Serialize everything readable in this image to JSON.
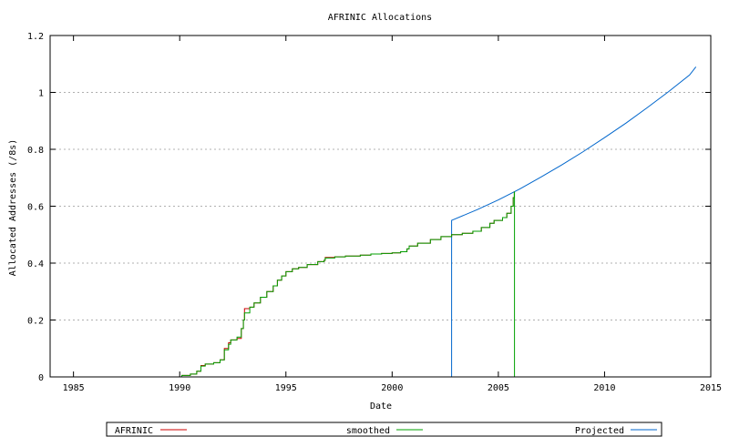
{
  "chart_data": {
    "type": "line",
    "title": "AFRINIC Allocations",
    "xlabel": "Date",
    "ylabel": "Allocated Addresses (/8s)",
    "xlim": [
      1983.9,
      2015
    ],
    "ylim": [
      0,
      1.2
    ],
    "x_ticks": [
      1985,
      1990,
      1995,
      2000,
      2005,
      2010,
      2015
    ],
    "y_ticks": [
      0,
      0.2,
      0.4,
      0.6,
      0.8,
      1,
      1.2
    ],
    "x_tick_labels": [
      "1985",
      "1990",
      "1995",
      "2000",
      "2005",
      "2010",
      "2015"
    ],
    "y_tick_labels": [
      "0",
      "0.2",
      "0.4",
      "0.6",
      "0.8",
      "1",
      "1.2"
    ],
    "grid": "horizontal dashed",
    "legend_position": "bottom",
    "series": [
      {
        "name": "AFRINIC",
        "color": "#cc0000",
        "x": [
          1984.0,
          1989.9,
          1990.1,
          1990.5,
          1990.8,
          1991.0,
          1991.2,
          1991.6,
          1991.9,
          1992.1,
          1992.3,
          1992.4,
          1992.7,
          1992.9,
          1993.0,
          1993.05,
          1993.3,
          1993.5,
          1993.8,
          1994.1,
          1994.4,
          1994.6,
          1994.8,
          1995.0,
          1995.3,
          1995.6,
          1996.0,
          1996.5,
          1996.8,
          1996.85,
          1997.3,
          1997.8,
          1998.5,
          1999.0,
          1999.5,
          2000.0,
          2000.4,
          2000.7,
          2000.8,
          2001.2,
          2001.8,
          2002.3,
          2002.8,
          2003.3,
          2003.8,
          2004.2,
          2004.6,
          2004.8,
          2005.2,
          2005.4,
          2005.6,
          2005.7,
          2005.75
        ],
        "y": [
          0.0,
          0.0,
          0.005,
          0.01,
          0.02,
          0.04,
          0.045,
          0.05,
          0.06,
          0.1,
          0.12,
          0.13,
          0.135,
          0.17,
          0.2,
          0.24,
          0.245,
          0.26,
          0.28,
          0.3,
          0.32,
          0.34,
          0.355,
          0.37,
          0.38,
          0.385,
          0.395,
          0.405,
          0.41,
          0.42,
          0.422,
          0.425,
          0.428,
          0.432,
          0.434,
          0.436,
          0.44,
          0.45,
          0.46,
          0.47,
          0.483,
          0.493,
          0.5,
          0.505,
          0.512,
          0.525,
          0.54,
          0.55,
          0.56,
          0.575,
          0.6,
          0.63,
          0.65
        ]
      },
      {
        "name": "smoothed",
        "color": "#00a000",
        "x": [
          1984.0,
          1989.9,
          1990.1,
          1990.5,
          1990.8,
          1991.0,
          1991.2,
          1991.6,
          1991.9,
          1992.1,
          1992.3,
          1992.4,
          1992.7,
          1992.9,
          1993.0,
          1993.05,
          1993.3,
          1993.5,
          1993.8,
          1994.1,
          1994.4,
          1994.6,
          1994.8,
          1995.0,
          1995.3,
          1995.6,
          1996.0,
          1996.5,
          1996.8,
          1996.85,
          1997.3,
          1997.8,
          1998.5,
          1999.0,
          1999.5,
          2000.0,
          2000.4,
          2000.7,
          2000.8,
          2001.2,
          2001.8,
          2002.3,
          2002.8,
          2003.3,
          2003.8,
          2004.2,
          2004.6,
          2004.8,
          2005.2,
          2005.4,
          2005.6,
          2005.7,
          2005.75,
          2005.76
        ],
        "y": [
          0.0,
          0.0,
          0.005,
          0.01,
          0.02,
          0.038,
          0.045,
          0.05,
          0.06,
          0.095,
          0.115,
          0.13,
          0.14,
          0.17,
          0.2,
          0.225,
          0.245,
          0.26,
          0.28,
          0.3,
          0.32,
          0.34,
          0.355,
          0.37,
          0.38,
          0.385,
          0.395,
          0.405,
          0.41,
          0.418,
          0.422,
          0.425,
          0.428,
          0.432,
          0.434,
          0.436,
          0.44,
          0.45,
          0.46,
          0.47,
          0.483,
          0.493,
          0.5,
          0.505,
          0.512,
          0.525,
          0.54,
          0.55,
          0.56,
          0.575,
          0.6,
          0.63,
          0.65,
          0.0
        ]
      },
      {
        "name": "Projected",
        "color": "#0066cc",
        "x": [
          2002.8,
          2002.8,
          2004.0,
          2005.0,
          2006.0,
          2007.0,
          2008.0,
          2009.0,
          2010.0,
          2011.0,
          2012.0,
          2013.0,
          2014.0,
          2014.3
        ],
        "y": [
          0.0,
          0.55,
          0.588,
          0.622,
          0.66,
          0.702,
          0.746,
          0.792,
          0.841,
          0.892,
          0.946,
          1.002,
          1.061,
          1.09
        ]
      }
    ]
  }
}
